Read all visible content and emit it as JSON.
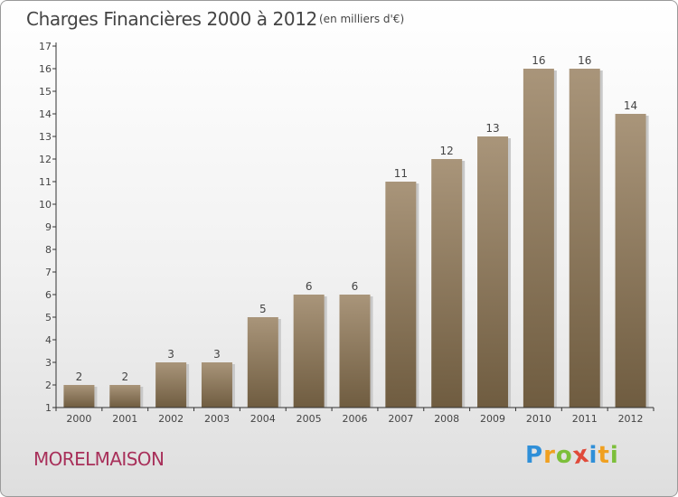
{
  "header": {
    "title": "Charges Financières 2000 à 2012",
    "unit": "(en milliers d'€)"
  },
  "footer": {
    "place": "MORELMAISON",
    "logo_text": "Proxiti",
    "logo_letters": [
      {
        "ch": "P",
        "color": "#2f8fd8"
      },
      {
        "ch": "r",
        "color": "#f0a020"
      },
      {
        "ch": "o",
        "color": "#7cbf3a"
      },
      {
        "ch": "x",
        "color": "#e04a3a"
      },
      {
        "ch": "i",
        "color": "#2f8fd8"
      },
      {
        "ch": "t",
        "color": "#f0a020"
      },
      {
        "ch": "i",
        "color": "#7cbf3a"
      }
    ]
  },
  "colors": {
    "bar_top": "#a9957a",
    "bar_bottom": "#6f5c40",
    "axis": "#333333",
    "text": "#444444"
  },
  "chart_data": {
    "type": "bar",
    "title": "Charges Financières 2000 à 2012",
    "subtitle": "(en milliers d'€)",
    "categories": [
      "2000",
      "2001",
      "2002",
      "2003",
      "2004",
      "2005",
      "2006",
      "2007",
      "2008",
      "2009",
      "2010",
      "2011",
      "2012"
    ],
    "values": [
      2,
      2,
      3,
      3,
      5,
      6,
      6,
      11,
      12,
      13,
      16,
      16,
      14
    ],
    "ylim": [
      1,
      17
    ],
    "yticks": [
      1,
      2,
      3,
      4,
      5,
      6,
      7,
      8,
      9,
      10,
      11,
      12,
      13,
      14,
      15,
      16,
      17
    ],
    "xlabel": "",
    "ylabel": "",
    "grid": false,
    "data_labels": true
  }
}
